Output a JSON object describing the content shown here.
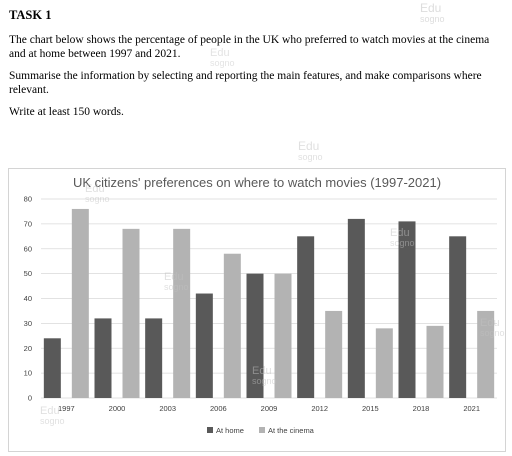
{
  "task": {
    "heading": "TASK 1",
    "prompt": "The chart below shows the percentage of people in the UK who preferred to watch movies at the cinema and at home between 1997 and 2021.",
    "instruction": "Summarise the information by selecting and reporting the main features, and make comparisons where relevant.",
    "word_count": "Write at least 150 words."
  },
  "watermark": {
    "brand": "Edu",
    "sub": "sogno",
    "color": "#c2c2c2"
  },
  "colors": {
    "at_home": "#595959",
    "at_cinema": "#b3b3b3",
    "grid": "#d9d9d9",
    "title": "#595959"
  },
  "chart_data": {
    "type": "bar",
    "title": "UK citizens' preferences on where to watch movies (1997-2021)",
    "xlabel": "",
    "ylabel": "",
    "categories": [
      "1997",
      "2000",
      "2003",
      "2006",
      "2009",
      "2012",
      "2015",
      "2018",
      "2021"
    ],
    "series": [
      {
        "name": "At home",
        "values": [
          24,
          32,
          32,
          42,
          50,
          65,
          72,
          71,
          65
        ]
      },
      {
        "name": "At the cinema",
        "values": [
          76,
          68,
          68,
          58,
          50,
          35,
          28,
          29,
          35
        ]
      }
    ],
    "ylim": [
      0,
      80
    ],
    "yticks": [
      0,
      10,
      20,
      30,
      40,
      50,
      60,
      70,
      80
    ],
    "grid": true,
    "legend": "bottom"
  }
}
